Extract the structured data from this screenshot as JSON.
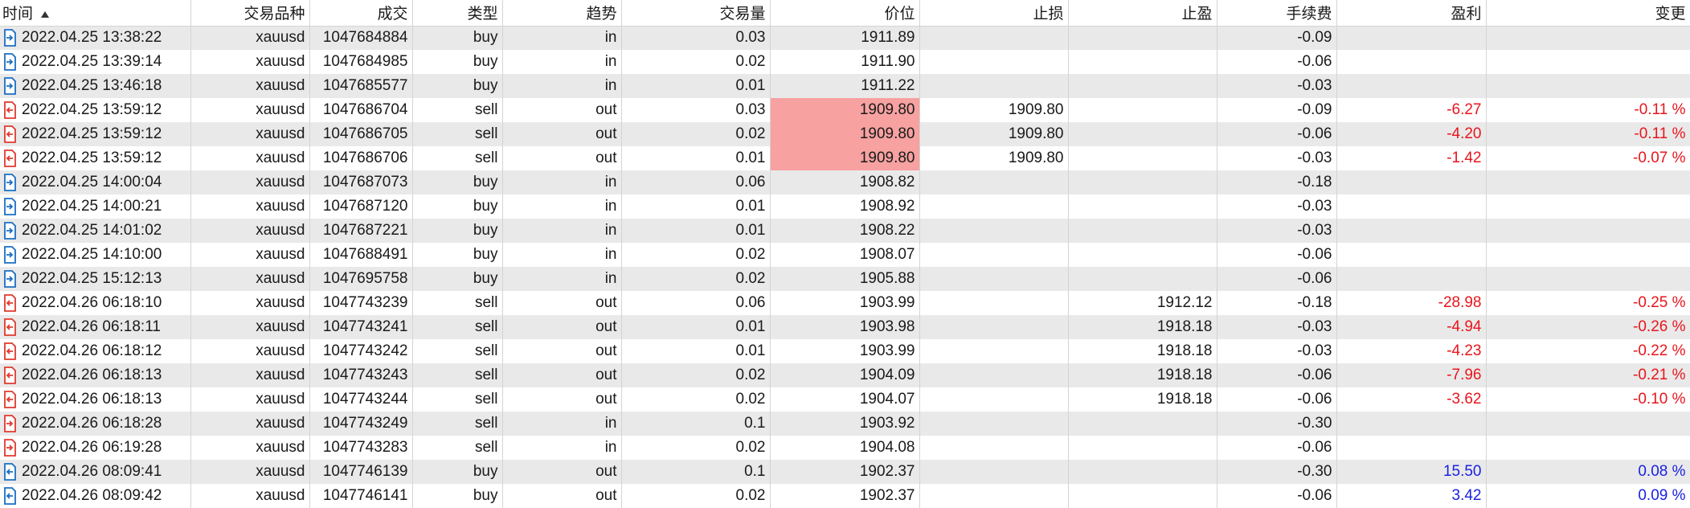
{
  "colors": {
    "in_icon": "#1a6fc4",
    "out_icon": "#e03a2e",
    "highlight": "#f7a1a1",
    "negative": "#e8151d",
    "positive": "#1a22e0"
  },
  "headers": {
    "time": "时间",
    "symbol": "交易品种",
    "deal": "成交",
    "type": "类型",
    "direction": "趋势",
    "volume": "交易量",
    "price": "价位",
    "sl": "止损",
    "tp": "止盈",
    "commission": "手续费",
    "profit": "盈利",
    "change": "变更"
  },
  "rows": [
    {
      "icon": "in-arrow-icon",
      "time": "2022.04.25 13:38:22",
      "symbol": "xauusd",
      "deal": "1047684884",
      "type": "buy",
      "direction": "in",
      "volume": "0.03",
      "price": "1911.89",
      "price_hl": false,
      "sl": "",
      "tp": "",
      "commission": "-0.09",
      "profit": "",
      "change": "",
      "sign": ""
    },
    {
      "icon": "in-arrow-icon",
      "time": "2022.04.25 13:39:14",
      "symbol": "xauusd",
      "deal": "1047684985",
      "type": "buy",
      "direction": "in",
      "volume": "0.02",
      "price": "1911.90",
      "price_hl": false,
      "sl": "",
      "tp": "",
      "commission": "-0.06",
      "profit": "",
      "change": "",
      "sign": ""
    },
    {
      "icon": "in-arrow-icon",
      "time": "2022.04.25 13:46:18",
      "symbol": "xauusd",
      "deal": "1047685577",
      "type": "buy",
      "direction": "in",
      "volume": "0.01",
      "price": "1911.22",
      "price_hl": false,
      "sl": "",
      "tp": "",
      "commission": "-0.03",
      "profit": "",
      "change": "",
      "sign": ""
    },
    {
      "icon": "out-arrow-icon",
      "time": "2022.04.25 13:59:12",
      "symbol": "xauusd",
      "deal": "1047686704",
      "type": "sell",
      "direction": "out",
      "volume": "0.03",
      "price": "1909.80",
      "price_hl": true,
      "sl": "1909.80",
      "tp": "",
      "commission": "-0.09",
      "profit": "-6.27",
      "change": "-0.11 %",
      "sign": "neg"
    },
    {
      "icon": "out-arrow-icon",
      "time": "2022.04.25 13:59:12",
      "symbol": "xauusd",
      "deal": "1047686705",
      "type": "sell",
      "direction": "out",
      "volume": "0.02",
      "price": "1909.80",
      "price_hl": true,
      "sl": "1909.80",
      "tp": "",
      "commission": "-0.06",
      "profit": "-4.20",
      "change": "-0.11 %",
      "sign": "neg"
    },
    {
      "icon": "out-arrow-icon",
      "time": "2022.04.25 13:59:12",
      "symbol": "xauusd",
      "deal": "1047686706",
      "type": "sell",
      "direction": "out",
      "volume": "0.01",
      "price": "1909.80",
      "price_hl": true,
      "sl": "1909.80",
      "tp": "",
      "commission": "-0.03",
      "profit": "-1.42",
      "change": "-0.07 %",
      "sign": "neg"
    },
    {
      "icon": "in-arrow-icon",
      "time": "2022.04.25 14:00:04",
      "symbol": "xauusd",
      "deal": "1047687073",
      "type": "buy",
      "direction": "in",
      "volume": "0.06",
      "price": "1908.82",
      "price_hl": false,
      "sl": "",
      "tp": "",
      "commission": "-0.18",
      "profit": "",
      "change": "",
      "sign": ""
    },
    {
      "icon": "in-arrow-icon",
      "time": "2022.04.25 14:00:21",
      "symbol": "xauusd",
      "deal": "1047687120",
      "type": "buy",
      "direction": "in",
      "volume": "0.01",
      "price": "1908.92",
      "price_hl": false,
      "sl": "",
      "tp": "",
      "commission": "-0.03",
      "profit": "",
      "change": "",
      "sign": ""
    },
    {
      "icon": "in-arrow-icon",
      "time": "2022.04.25 14:01:02",
      "symbol": "xauusd",
      "deal": "1047687221",
      "type": "buy",
      "direction": "in",
      "volume": "0.01",
      "price": "1908.22",
      "price_hl": false,
      "sl": "",
      "tp": "",
      "commission": "-0.03",
      "profit": "",
      "change": "",
      "sign": ""
    },
    {
      "icon": "in-arrow-icon",
      "time": "2022.04.25 14:10:00",
      "symbol": "xauusd",
      "deal": "1047688491",
      "type": "buy",
      "direction": "in",
      "volume": "0.02",
      "price": "1908.07",
      "price_hl": false,
      "sl": "",
      "tp": "",
      "commission": "-0.06",
      "profit": "",
      "change": "",
      "sign": ""
    },
    {
      "icon": "in-arrow-icon",
      "time": "2022.04.25 15:12:13",
      "symbol": "xauusd",
      "deal": "1047695758",
      "type": "buy",
      "direction": "in",
      "volume": "0.02",
      "price": "1905.88",
      "price_hl": false,
      "sl": "",
      "tp": "",
      "commission": "-0.06",
      "profit": "",
      "change": "",
      "sign": ""
    },
    {
      "icon": "out-arrow-icon",
      "time": "2022.04.26 06:18:10",
      "symbol": "xauusd",
      "deal": "1047743239",
      "type": "sell",
      "direction": "out",
      "volume": "0.06",
      "price": "1903.99",
      "price_hl": false,
      "sl": "",
      "tp": "1912.12",
      "commission": "-0.18",
      "profit": "-28.98",
      "change": "-0.25 %",
      "sign": "neg"
    },
    {
      "icon": "out-arrow-icon",
      "time": "2022.04.26 06:18:11",
      "symbol": "xauusd",
      "deal": "1047743241",
      "type": "sell",
      "direction": "out",
      "volume": "0.01",
      "price": "1903.98",
      "price_hl": false,
      "sl": "",
      "tp": "1918.18",
      "commission": "-0.03",
      "profit": "-4.94",
      "change": "-0.26 %",
      "sign": "neg"
    },
    {
      "icon": "out-arrow-icon",
      "time": "2022.04.26 06:18:12",
      "symbol": "xauusd",
      "deal": "1047743242",
      "type": "sell",
      "direction": "out",
      "volume": "0.01",
      "price": "1903.99",
      "price_hl": false,
      "sl": "",
      "tp": "1918.18",
      "commission": "-0.03",
      "profit": "-4.23",
      "change": "-0.22 %",
      "sign": "neg"
    },
    {
      "icon": "out-arrow-icon",
      "time": "2022.04.26 06:18:13",
      "symbol": "xauusd",
      "deal": "1047743243",
      "type": "sell",
      "direction": "out",
      "volume": "0.02",
      "price": "1904.09",
      "price_hl": false,
      "sl": "",
      "tp": "1918.18",
      "commission": "-0.06",
      "profit": "-7.96",
      "change": "-0.21 %",
      "sign": "neg"
    },
    {
      "icon": "out-arrow-icon",
      "time": "2022.04.26 06:18:13",
      "symbol": "xauusd",
      "deal": "1047743244",
      "type": "sell",
      "direction": "out",
      "volume": "0.02",
      "price": "1904.07",
      "price_hl": false,
      "sl": "",
      "tp": "1918.18",
      "commission": "-0.06",
      "profit": "-3.62",
      "change": "-0.10 %",
      "sign": "neg"
    },
    {
      "icon": "in-arrow-red-icon",
      "time": "2022.04.26 06:18:28",
      "symbol": "xauusd",
      "deal": "1047743249",
      "type": "sell",
      "direction": "in",
      "volume": "0.1",
      "price": "1903.92",
      "price_hl": false,
      "sl": "",
      "tp": "",
      "commission": "-0.30",
      "profit": "",
      "change": "",
      "sign": ""
    },
    {
      "icon": "in-arrow-red-icon",
      "time": "2022.04.26 06:19:28",
      "symbol": "xauusd",
      "deal": "1047743283",
      "type": "sell",
      "direction": "in",
      "volume": "0.02",
      "price": "1904.08",
      "price_hl": false,
      "sl": "",
      "tp": "",
      "commission": "-0.06",
      "profit": "",
      "change": "",
      "sign": ""
    },
    {
      "icon": "out-arrow-blue-icon",
      "time": "2022.04.26 08:09:41",
      "symbol": "xauusd",
      "deal": "1047746139",
      "type": "buy",
      "direction": "out",
      "volume": "0.1",
      "price": "1902.37",
      "price_hl": false,
      "sl": "",
      "tp": "",
      "commission": "-0.30",
      "profit": "15.50",
      "change": "0.08 %",
      "sign": "pos"
    },
    {
      "icon": "out-arrow-blue-icon",
      "time": "2022.04.26 08:09:42",
      "symbol": "xauusd",
      "deal": "1047746141",
      "type": "buy",
      "direction": "out",
      "volume": "0.02",
      "price": "1902.37",
      "price_hl": false,
      "sl": "",
      "tp": "",
      "commission": "-0.06",
      "profit": "3.42",
      "change": "0.09 %",
      "sign": "pos"
    }
  ]
}
